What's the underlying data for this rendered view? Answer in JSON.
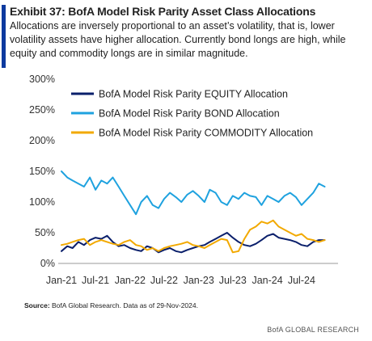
{
  "header": {
    "title": "Exhibit 37: BofA Model Risk Parity Asset Class Allocations",
    "subtitle": "Allocations are inversely proportional to an asset’s volatility, that is, lower volatility assets have higher allocation.  Currently bond longs are high, while equity and commodity longs are in similar magnitude."
  },
  "footer": {
    "source_label": "Source:",
    "source_text": " BofA Global Research.  Data as of 29-Nov-2024.",
    "brand": "BofA GLOBAL RESEARCH"
  },
  "colors": {
    "accent": "#0d3a9f",
    "equity": "#0a1f6b",
    "bond": "#1fa2df",
    "commodity": "#f2a900"
  },
  "chart_data": {
    "type": "line",
    "title": "",
    "xlabel": "",
    "ylabel": "",
    "ylim": [
      0,
      300
    ],
    "y_ticks": [
      "0%",
      "50%",
      "100%",
      "150%",
      "200%",
      "250%",
      "300%"
    ],
    "x_ticks": [
      "Jan-21",
      "Jul-21",
      "Jan-22",
      "Jul-22",
      "Jan-23",
      "Jul-23",
      "Jan-24",
      "Jul-24"
    ],
    "grid": false,
    "legend_position": "top-left",
    "x": [
      "2021-01",
      "2021-02",
      "2021-03",
      "2021-04",
      "2021-05",
      "2021-06",
      "2021-07",
      "2021-08",
      "2021-09",
      "2021-10",
      "2021-11",
      "2021-12",
      "2022-01",
      "2022-02",
      "2022-03",
      "2022-04",
      "2022-05",
      "2022-06",
      "2022-07",
      "2022-08",
      "2022-09",
      "2022-10",
      "2022-11",
      "2022-12",
      "2023-01",
      "2023-02",
      "2023-03",
      "2023-04",
      "2023-05",
      "2023-06",
      "2023-07",
      "2023-08",
      "2023-09",
      "2023-10",
      "2023-11",
      "2023-12",
      "2024-01",
      "2024-02",
      "2024-03",
      "2024-04",
      "2024-05",
      "2024-06",
      "2024-07",
      "2024-08",
      "2024-09",
      "2024-10",
      "2024-11"
    ],
    "series": [
      {
        "name": "BofA Model Risk Parity EQUITY Allocation",
        "color": "#0a1f6b",
        "values": [
          20,
          28,
          25,
          35,
          30,
          38,
          42,
          40,
          45,
          35,
          28,
          30,
          25,
          22,
          20,
          28,
          25,
          18,
          22,
          25,
          20,
          18,
          22,
          25,
          28,
          30,
          35,
          40,
          45,
          50,
          42,
          35,
          30,
          28,
          32,
          38,
          45,
          48,
          42,
          40,
          38,
          35,
          30,
          28,
          35,
          38,
          38
        ]
      },
      {
        "name": "BofA Model Risk Parity BOND Allocation",
        "color": "#1fa2df",
        "values": [
          150,
          140,
          135,
          130,
          125,
          140,
          120,
          135,
          130,
          140,
          125,
          110,
          95,
          80,
          100,
          110,
          95,
          90,
          105,
          115,
          108,
          100,
          112,
          118,
          110,
          100,
          120,
          115,
          100,
          95,
          110,
          105,
          115,
          110,
          108,
          95,
          110,
          105,
          100,
          110,
          115,
          108,
          95,
          105,
          115,
          130,
          125
        ]
      },
      {
        "name": "BofA Model Risk Parity COMMODITY Allocation",
        "color": "#f2a900",
        "values": [
          30,
          32,
          35,
          38,
          40,
          30,
          35,
          38,
          35,
          32,
          30,
          35,
          38,
          30,
          28,
          22,
          25,
          20,
          25,
          28,
          30,
          32,
          35,
          30,
          28,
          25,
          30,
          35,
          40,
          38,
          18,
          20,
          40,
          55,
          60,
          68,
          65,
          70,
          60,
          55,
          50,
          45,
          48,
          40,
          38,
          35,
          38
        ]
      }
    ]
  }
}
